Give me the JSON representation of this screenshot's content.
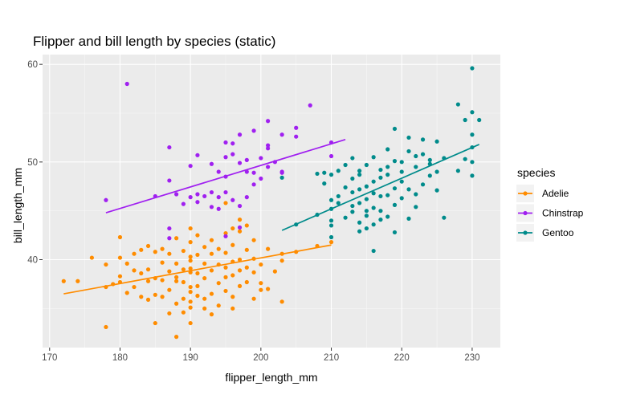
{
  "chart_data": {
    "type": "scatter",
    "title": "Flipper and bill length by species (static)",
    "xlabel": "flipper_length_mm",
    "ylabel": "bill_length_mm",
    "xlim": [
      169,
      234
    ],
    "ylim": [
      31,
      61
    ],
    "xticks": [
      170,
      180,
      190,
      200,
      210,
      220,
      230
    ],
    "yticks": [
      40,
      50,
      60
    ],
    "grid": true,
    "legend": {
      "title": "species",
      "position": "right"
    },
    "series": [
      {
        "name": "Adelie",
        "color": "#FF8C00",
        "fit": {
          "x0": 172,
          "y0": 36.5,
          "x1": 210,
          "y1": 41.5
        },
        "points": [
          [
            172,
            37.8
          ],
          [
            174,
            37.8
          ],
          [
            176,
            40.2
          ],
          [
            178,
            39.5
          ],
          [
            178,
            37.2
          ],
          [
            178,
            33.1
          ],
          [
            179,
            37.5
          ],
          [
            180,
            38.3
          ],
          [
            180,
            40.2
          ],
          [
            180,
            42.3
          ],
          [
            180,
            37.7
          ],
          [
            181,
            36.6
          ],
          [
            181,
            39.6
          ],
          [
            182,
            38.9
          ],
          [
            182,
            37.2
          ],
          [
            182,
            40.6
          ],
          [
            183,
            38.6
          ],
          [
            183,
            36.2
          ],
          [
            183,
            41.0
          ],
          [
            184,
            39.0
          ],
          [
            184,
            37.8
          ],
          [
            184,
            41.4
          ],
          [
            184,
            35.9
          ],
          [
            185,
            40.8
          ],
          [
            185,
            38.1
          ],
          [
            185,
            36.4
          ],
          [
            185,
            33.5
          ],
          [
            186,
            37.9
          ],
          [
            186,
            39.7
          ],
          [
            186,
            36.2
          ],
          [
            186,
            41.1
          ],
          [
            187,
            38.8
          ],
          [
            187,
            34.5
          ],
          [
            187,
            40.6
          ],
          [
            187,
            36.9
          ],
          [
            188,
            37.8
          ],
          [
            188,
            39.6
          ],
          [
            188,
            38.2
          ],
          [
            188,
            35.5
          ],
          [
            188,
            42.2
          ],
          [
            188,
            32.1
          ],
          [
            189,
            40.9
          ],
          [
            189,
            37.7
          ],
          [
            189,
            36.0
          ],
          [
            189,
            39.0
          ],
          [
            189,
            34.6
          ],
          [
            190,
            39.1
          ],
          [
            190,
            38.7
          ],
          [
            190,
            40.3
          ],
          [
            190,
            36.7
          ],
          [
            190,
            35.7
          ],
          [
            190,
            41.8
          ],
          [
            190,
            37.2
          ],
          [
            190,
            33.5
          ],
          [
            190,
            43.2
          ],
          [
            190,
            35.1
          ],
          [
            190,
            39.9
          ],
          [
            191,
            38.6
          ],
          [
            191,
            40.5
          ],
          [
            191,
            36.3
          ],
          [
            191,
            37.3
          ],
          [
            191,
            42.5
          ],
          [
            192,
            39.6
          ],
          [
            192,
            36.0
          ],
          [
            192,
            41.3
          ],
          [
            192,
            38.1
          ],
          [
            192,
            35.0
          ],
          [
            193,
            38.9
          ],
          [
            193,
            40.6
          ],
          [
            193,
            36.5
          ],
          [
            193,
            42.0
          ],
          [
            193,
            34.4
          ],
          [
            194,
            37.6
          ],
          [
            194,
            39.5
          ],
          [
            194,
            41.1
          ],
          [
            194,
            35.3
          ],
          [
            195,
            38.2
          ],
          [
            195,
            40.7
          ],
          [
            195,
            36.8
          ],
          [
            195,
            42.7
          ],
          [
            195,
            39.2
          ],
          [
            195,
            45.8
          ],
          [
            196,
            41.5
          ],
          [
            196,
            38.4
          ],
          [
            196,
            36.2
          ],
          [
            196,
            43.2
          ],
          [
            196,
            39.8
          ],
          [
            196,
            35.0
          ],
          [
            197,
            40.0
          ],
          [
            197,
            42.9
          ],
          [
            197,
            37.3
          ],
          [
            197,
            44.1
          ],
          [
            197,
            38.9
          ],
          [
            198,
            37.7
          ],
          [
            198,
            41.0
          ],
          [
            198,
            39.2
          ],
          [
            198,
            43.5
          ],
          [
            199,
            40.1
          ],
          [
            199,
            36.0
          ],
          [
            199,
            42.0
          ],
          [
            199,
            38.7
          ],
          [
            200,
            36.9
          ],
          [
            200,
            39.5
          ],
          [
            200,
            37.6
          ],
          [
            201,
            41.1
          ],
          [
            201,
            37.0
          ],
          [
            202,
            38.8
          ],
          [
            203,
            40.6
          ],
          [
            203,
            39.9
          ],
          [
            203,
            35.7
          ],
          [
            205,
            40.8
          ],
          [
            208,
            41.4
          ],
          [
            210,
            41.8
          ]
        ]
      },
      {
        "name": "Chinstrap",
        "color": "#A020F0",
        "fit": {
          "x0": 178,
          "y0": 44.8,
          "x1": 212,
          "y1": 52.3
        },
        "points": [
          [
            178,
            46.1
          ],
          [
            181,
            58.0
          ],
          [
            185,
            46.5
          ],
          [
            187,
            51.5
          ],
          [
            187,
            48.1
          ],
          [
            187,
            43.2
          ],
          [
            187,
            42.2
          ],
          [
            188,
            46.7
          ],
          [
            189,
            45.7
          ],
          [
            190,
            46.4
          ],
          [
            190,
            49.6
          ],
          [
            191,
            45.9
          ],
          [
            191,
            50.7
          ],
          [
            191,
            46.7
          ],
          [
            192,
            46.5
          ],
          [
            193,
            49.8
          ],
          [
            193,
            46.9
          ],
          [
            193,
            45.4
          ],
          [
            194,
            49.0
          ],
          [
            194,
            45.2
          ],
          [
            194,
            46.4
          ],
          [
            195,
            50.5
          ],
          [
            195,
            42.4
          ],
          [
            195,
            52.0
          ],
          [
            195,
            46.9
          ],
          [
            195,
            48.5
          ],
          [
            196,
            51.9
          ],
          [
            196,
            46.1
          ],
          [
            196,
            50.8
          ],
          [
            197,
            45.5
          ],
          [
            197,
            52.8
          ],
          [
            197,
            43.3
          ],
          [
            197,
            49.9
          ],
          [
            198,
            50.2
          ],
          [
            198,
            49.0
          ],
          [
            198,
            46.4
          ],
          [
            199,
            48.9
          ],
          [
            199,
            53.2
          ],
          [
            199,
            47.7
          ],
          [
            200,
            48.3
          ],
          [
            200,
            50.4
          ],
          [
            201,
            49.5
          ],
          [
            201,
            51.4
          ],
          [
            201,
            51.7
          ],
          [
            201,
            54.2
          ],
          [
            202,
            50.0
          ],
          [
            203,
            49.0
          ],
          [
            203,
            52.8
          ],
          [
            203,
            48.9
          ],
          [
            205,
            52.6
          ],
          [
            205,
            53.5
          ],
          [
            207,
            55.8
          ],
          [
            210,
            52.0
          ],
          [
            210,
            50.6
          ]
        ]
      },
      {
        "name": "Gentoo",
        "color": "#008B8B",
        "fit": {
          "x0": 203,
          "y0": 43.0,
          "x1": 231,
          "y1": 51.8
        },
        "points": [
          [
            203,
            48.4
          ],
          [
            205,
            43.6
          ],
          [
            208,
            48.8
          ],
          [
            208,
            44.6
          ],
          [
            209,
            48.9
          ],
          [
            209,
            47.8
          ],
          [
            210,
            45.2
          ],
          [
            210,
            46.1
          ],
          [
            210,
            43.5
          ],
          [
            210,
            44.0
          ],
          [
            210,
            42.3
          ],
          [
            210,
            48.7
          ],
          [
            211,
            45.8
          ],
          [
            211,
            46.5
          ],
          [
            211,
            49.1
          ],
          [
            212,
            44.3
          ],
          [
            212,
            47.4
          ],
          [
            212,
            49.7
          ],
          [
            213,
            48.3
          ],
          [
            213,
            44.9
          ],
          [
            213,
            50.4
          ],
          [
            213,
            45.5
          ],
          [
            213,
            46.9
          ],
          [
            214,
            49.1
          ],
          [
            214,
            47.2
          ],
          [
            214,
            43.8
          ],
          [
            214,
            42.9
          ],
          [
            214,
            45.8
          ],
          [
            214,
            48.7
          ],
          [
            215,
            46.2
          ],
          [
            215,
            47.5
          ],
          [
            215,
            44.5
          ],
          [
            215,
            49.7
          ],
          [
            215,
            45.0
          ],
          [
            215,
            43.2
          ],
          [
            216,
            46.8
          ],
          [
            216,
            50.5
          ],
          [
            216,
            45.3
          ],
          [
            216,
            48.0
          ],
          [
            216,
            43.6
          ],
          [
            216,
            40.9
          ],
          [
            217,
            45.0
          ],
          [
            217,
            48.4
          ],
          [
            217,
            49.2
          ],
          [
            217,
            46.5
          ],
          [
            217,
            44.1
          ],
          [
            218,
            49.5
          ],
          [
            218,
            48.7
          ],
          [
            218,
            46.6
          ],
          [
            218,
            44.4
          ],
          [
            218,
            51.3
          ],
          [
            219,
            47.3
          ],
          [
            219,
            53.4
          ],
          [
            219,
            50.1
          ],
          [
            219,
            45.6
          ],
          [
            219,
            42.8
          ],
          [
            220,
            46.3
          ],
          [
            220,
            49.0
          ],
          [
            220,
            50.0
          ],
          [
            220,
            48.0
          ],
          [
            221,
            51.1
          ],
          [
            221,
            47.2
          ],
          [
            221,
            52.5
          ],
          [
            221,
            44.2
          ],
          [
            222,
            50.6
          ],
          [
            222,
            49.5
          ],
          [
            222,
            45.4
          ],
          [
            222,
            46.7
          ],
          [
            223,
            50.8
          ],
          [
            223,
            47.7
          ],
          [
            223,
            52.3
          ],
          [
            224,
            49.8
          ],
          [
            224,
            50.2
          ],
          [
            224,
            48.6
          ],
          [
            225,
            52.1
          ],
          [
            225,
            49.0
          ],
          [
            225,
            47.1
          ],
          [
            226,
            50.4
          ],
          [
            226,
            44.3
          ],
          [
            228,
            49.1
          ],
          [
            228,
            55.9
          ],
          [
            229,
            50.3
          ],
          [
            229,
            54.3
          ],
          [
            230,
            51.5
          ],
          [
            230,
            59.6
          ],
          [
            230,
            55.1
          ],
          [
            230,
            50.0
          ],
          [
            230,
            48.6
          ],
          [
            230,
            52.8
          ],
          [
            231,
            54.3
          ]
        ]
      }
    ]
  }
}
